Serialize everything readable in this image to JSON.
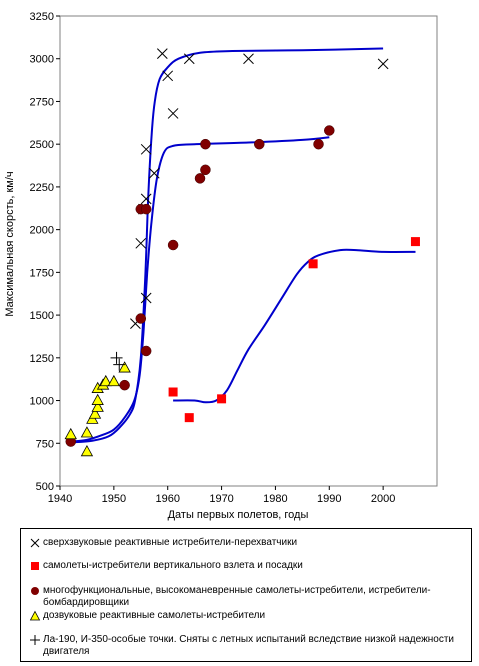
{
  "chart_data": {
    "type": "scatter",
    "xlabel": "Даты первых полетов, годы",
    "ylabel": "Максимальная скорсть, км/ч",
    "xlim": [
      1940,
      2010
    ],
    "ylim": [
      500,
      3250
    ],
    "xticks": [
      1940,
      1950,
      1960,
      1970,
      1980,
      1990,
      2000
    ],
    "yticks": [
      500,
      750,
      1000,
      1250,
      1500,
      1750,
      2000,
      2250,
      2500,
      2750,
      3000,
      3250
    ],
    "grid": false,
    "legend_position": "bottom",
    "series": [
      {
        "name": "сверхзвуковые реактивные истребители-перехватчики",
        "marker": "x",
        "color": "#000000",
        "points": [
          [
            1954,
            1450
          ],
          [
            1955,
            1920
          ],
          [
            1955.5,
            2120
          ],
          [
            1956,
            1600
          ],
          [
            1956,
            2180
          ],
          [
            1956,
            2470
          ],
          [
            1957.5,
            2330
          ],
          [
            1959,
            3030
          ],
          [
            1960,
            2900
          ],
          [
            1961,
            2680
          ],
          [
            1964,
            3000
          ],
          [
            1975,
            3000
          ],
          [
            2000,
            2970
          ]
        ]
      },
      {
        "name": "самолеты-истребители вертикального взлета и посадки",
        "marker": "square",
        "color": "#ff0000",
        "points": [
          [
            1961,
            1050
          ],
          [
            1964,
            900
          ],
          [
            1970,
            1010
          ],
          [
            1987,
            1800
          ],
          [
            2006,
            1930
          ]
        ]
      },
      {
        "name": "многофункциональные, высокоманевренные самолеты-истребители, истребители-бомбардировщики",
        "marker": "circle",
        "color": "#800000",
        "points": [
          [
            1942,
            760
          ],
          [
            1952,
            1090
          ],
          [
            1955,
            1480
          ],
          [
            1955,
            2120
          ],
          [
            1956,
            2120
          ],
          [
            1956,
            1290
          ],
          [
            1961,
            1910
          ],
          [
            1966,
            2300
          ],
          [
            1967,
            2350
          ],
          [
            1967,
            2500
          ],
          [
            1977,
            2500
          ],
          [
            1988,
            2500
          ],
          [
            1990,
            2580
          ]
        ]
      },
      {
        "name": "дозвуковые реактивные самолеты-истребители",
        "marker": "triangle",
        "color": "#ffff00",
        "points": [
          [
            1942,
            800
          ],
          [
            1945,
            700
          ],
          [
            1945,
            810
          ],
          [
            1946,
            890
          ],
          [
            1946.5,
            920
          ],
          [
            1947,
            960
          ],
          [
            1947,
            1000
          ],
          [
            1947,
            1070
          ],
          [
            1948,
            1090
          ],
          [
            1948.5,
            1110
          ],
          [
            1950,
            1110
          ],
          [
            1952,
            1190
          ]
        ]
      },
      {
        "name": "Ла-190, И-350-особые точки. Сняты с летных испытаний вследствие низкой надежности двигателя",
        "marker": "plus",
        "color": "#000000",
        "points": [
          [
            1950.5,
            1250
          ],
          [
            1951,
            1210
          ]
        ]
      }
    ],
    "trend_lines": [
      {
        "color": "#0000cc",
        "points": [
          [
            1942,
            755
          ],
          [
            1946,
            765
          ],
          [
            1949,
            790
          ],
          [
            1951,
            840
          ],
          [
            1953,
            920
          ],
          [
            1954,
            1010
          ],
          [
            1955,
            1250
          ],
          [
            1955.8,
            1700
          ],
          [
            1956.4,
            2200
          ],
          [
            1957,
            2550
          ],
          [
            1957.6,
            2750
          ],
          [
            1958.5,
            2880
          ],
          [
            1960,
            2950
          ],
          [
            1962,
            3000
          ],
          [
            1966,
            3035
          ],
          [
            1972,
            3045
          ],
          [
            1985,
            3050
          ],
          [
            2000,
            3060
          ]
        ]
      },
      {
        "color": "#0000cc",
        "points": [
          [
            1942,
            760
          ],
          [
            1945,
            770
          ],
          [
            1948,
            800
          ],
          [
            1950,
            830
          ],
          [
            1952,
            900
          ],
          [
            1953.8,
            1000
          ],
          [
            1954.8,
            1150
          ],
          [
            1955.5,
            1400
          ],
          [
            1956.2,
            1750
          ],
          [
            1957,
            2050
          ],
          [
            1958,
            2300
          ],
          [
            1959.3,
            2450
          ],
          [
            1961,
            2490
          ],
          [
            1965,
            2500
          ],
          [
            1975,
            2510
          ],
          [
            1985,
            2525
          ],
          [
            1990,
            2540
          ]
        ]
      },
      {
        "color": "#0000cc",
        "points": [
          [
            1961,
            1000
          ],
          [
            1965,
            1000
          ],
          [
            1967,
            990
          ],
          [
            1969,
            1000
          ],
          [
            1971,
            1060
          ],
          [
            1973,
            1180
          ],
          [
            1975,
            1300
          ],
          [
            1978,
            1440
          ],
          [
            1981,
            1590
          ],
          [
            1984,
            1740
          ],
          [
            1986,
            1810
          ],
          [
            1988,
            1850
          ],
          [
            1992,
            1880
          ],
          [
            1995,
            1880
          ],
          [
            2000,
            1870
          ],
          [
            2006,
            1870
          ]
        ]
      }
    ]
  }
}
